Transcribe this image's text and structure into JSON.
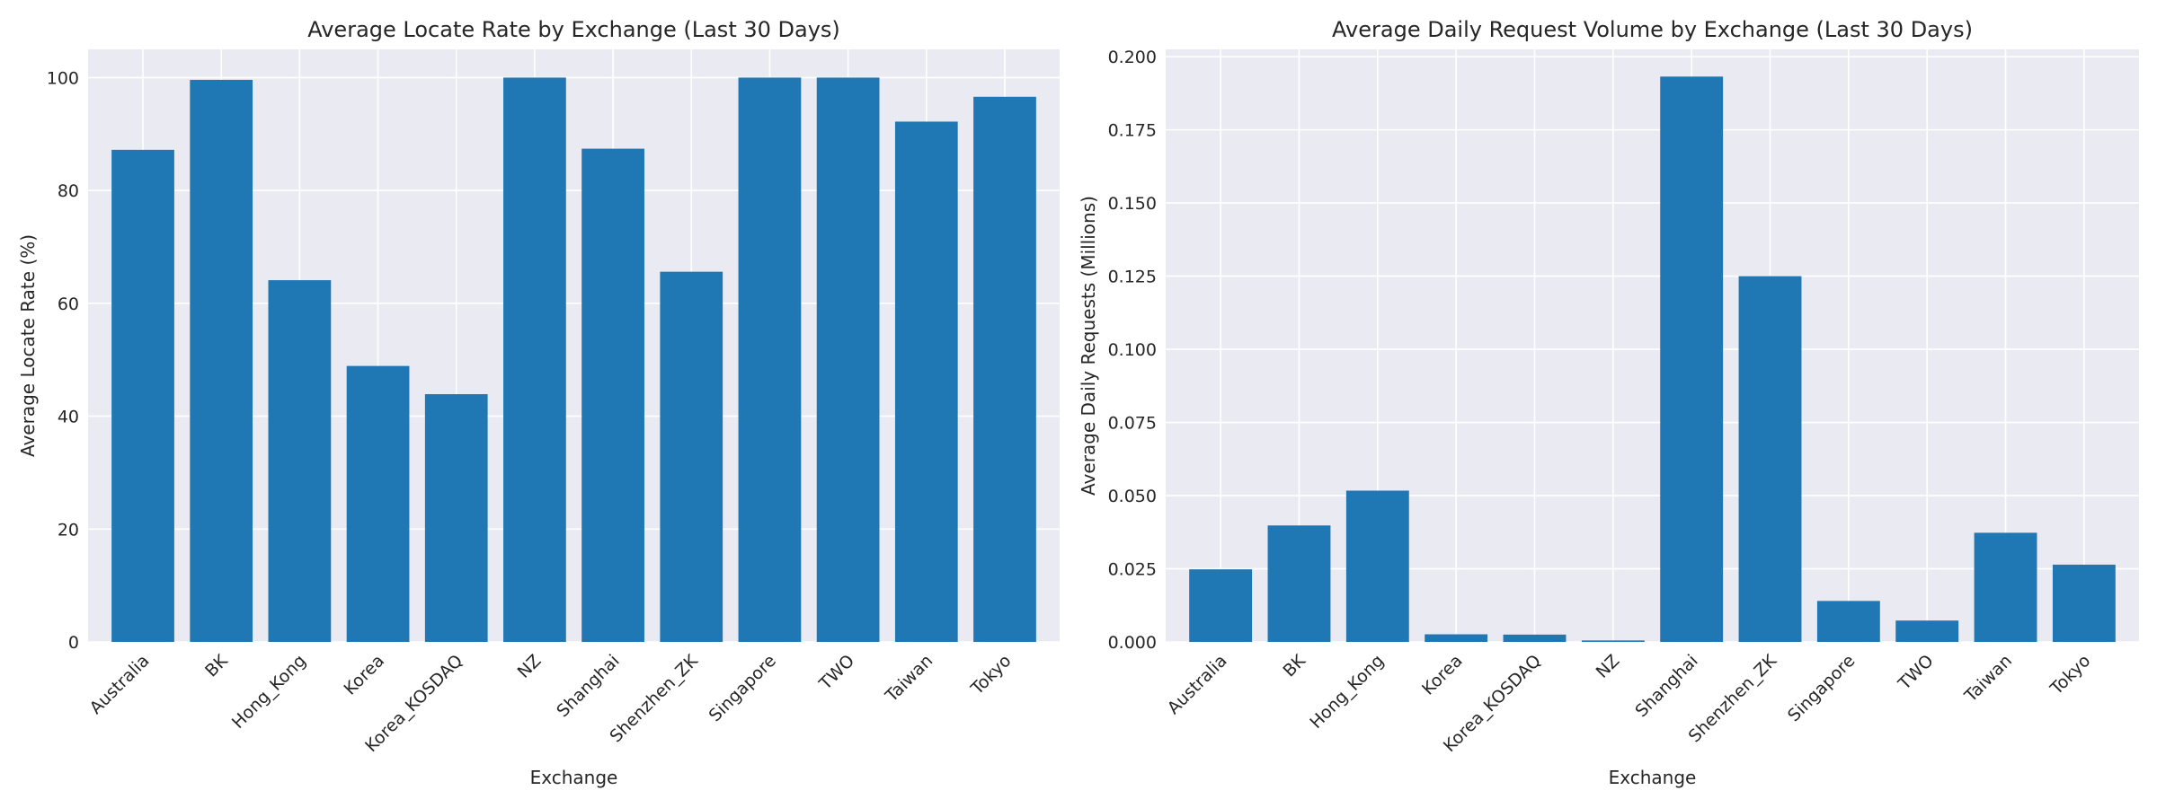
{
  "chart_data": [
    {
      "type": "bar",
      "title": "Average Locate Rate by Exchange (Last 30 Days)",
      "xlabel": "Exchange",
      "ylabel": "Average Locate Rate (%)",
      "categories": [
        "Australia",
        "BK",
        "Hong_Kong",
        "Korea",
        "Korea_KOSDAQ",
        "NZ",
        "Shanghai",
        "Shenzhen_ZK",
        "Singapore",
        "TWO",
        "Taiwan",
        "Tokyo"
      ],
      "values": [
        87.2,
        99.6,
        64.1,
        48.9,
        43.9,
        100.0,
        87.4,
        65.6,
        100.0,
        100.0,
        92.2,
        96.6
      ],
      "ylim": [
        0,
        105
      ],
      "yticks": [
        0,
        20,
        40,
        60,
        80,
        100
      ],
      "ytick_labels": [
        "0",
        "20",
        "40",
        "60",
        "80",
        "100"
      ],
      "grid": true,
      "color": "#1f77b4"
    },
    {
      "type": "bar",
      "title": "Average Daily Request Volume by Exchange (Last 30 Days)",
      "xlabel": "Exchange",
      "ylabel": "Average Daily Requests (Millions)",
      "categories": [
        "Australia",
        "BK",
        "Hong_Kong",
        "Korea",
        "Korea_KOSDAQ",
        "NZ",
        "Shanghai",
        "Shenzhen_ZK",
        "Singapore",
        "TWO",
        "Taiwan",
        "Tokyo"
      ],
      "values": [
        0.0248,
        0.0398,
        0.0517,
        0.0026,
        0.0025,
        0.0005,
        0.1932,
        0.125,
        0.014,
        0.0073,
        0.0373,
        0.0264
      ],
      "ylim": [
        0,
        0.2025
      ],
      "yticks": [
        0,
        0.025,
        0.05,
        0.075,
        0.1,
        0.125,
        0.15,
        0.175,
        0.2
      ],
      "ytick_labels": [
        "0.000",
        "0.025",
        "0.050",
        "0.075",
        "0.100",
        "0.125",
        "0.150",
        "0.175",
        "0.200"
      ],
      "grid": true,
      "color": "#1f77b4"
    }
  ]
}
